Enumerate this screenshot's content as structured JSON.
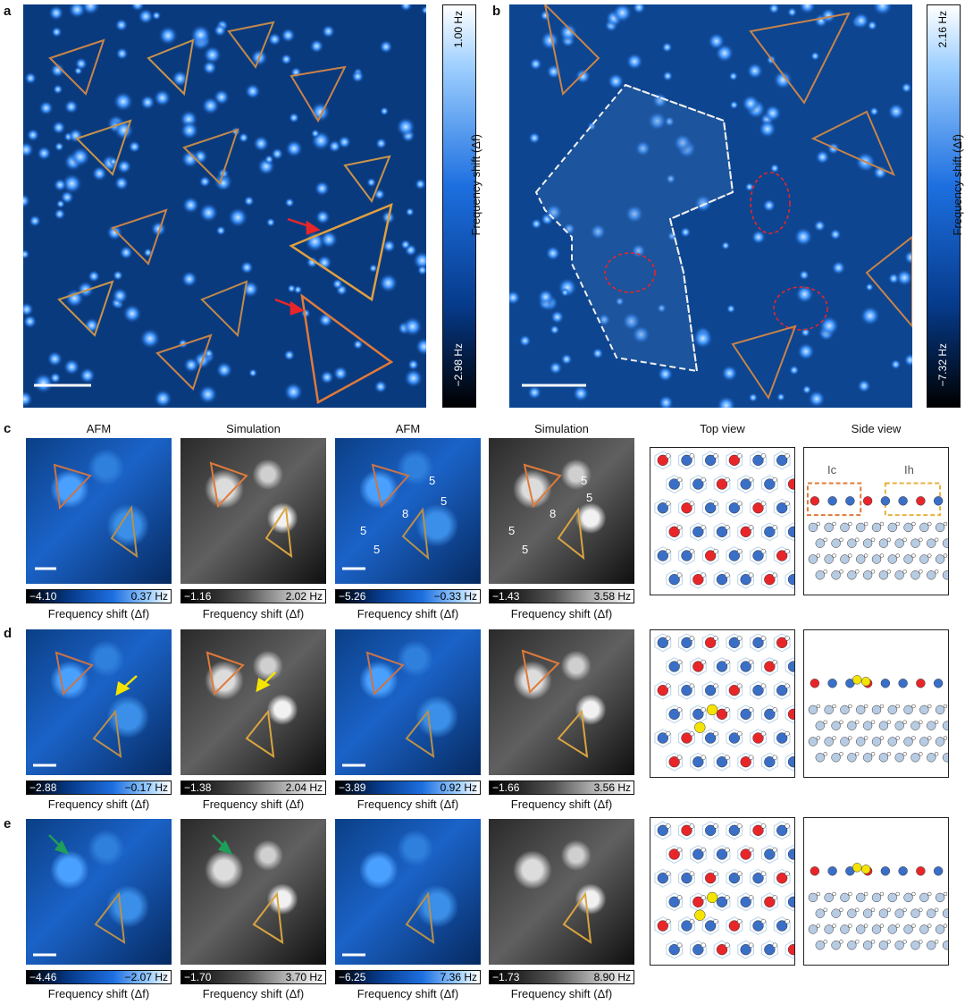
{
  "panels": {
    "a": {
      "label": "a",
      "cbar_max": "1.00 Hz",
      "cbar_min": "−2.98 Hz",
      "cbar_title": "Frequency shift (Δf)"
    },
    "b": {
      "label": "b",
      "cbar_max": "2.16 Hz",
      "cbar_min": "−7.32 Hz",
      "cbar_title": "Frequency shift (Δf)"
    },
    "c": {
      "label": "c"
    },
    "d": {
      "label": "d"
    },
    "e": {
      "label": "e"
    }
  },
  "columns": [
    "AFM",
    "Simulation",
    "AFM",
    "Simulation",
    "Top view",
    "Side view"
  ],
  "side_labels": {
    "ic": "Ic",
    "ih": "Ih"
  },
  "ring_labels": [
    "5",
    "5",
    "8",
    "5",
    "5"
  ],
  "caption": "Frequency shift (Δf)",
  "colorbars": {
    "c": [
      {
        "lo": "−4.10",
        "hi": "0.37 Hz"
      },
      {
        "lo": "−1.16",
        "hi": "2.02 Hz"
      },
      {
        "lo": "−5.26",
        "hi": "−0.33 Hz"
      },
      {
        "lo": "−1.43",
        "hi": "3.58 Hz"
      }
    ],
    "d": [
      {
        "lo": "−2.88",
        "hi": "−0.17 Hz"
      },
      {
        "lo": "−1.38",
        "hi": "2.04 Hz"
      },
      {
        "lo": "−3.89",
        "hi": "0.92 Hz"
      },
      {
        "lo": "−1.66",
        "hi": "3.56 Hz"
      }
    ],
    "e": [
      {
        "lo": "−4.46",
        "hi": "−2.07 Hz"
      },
      {
        "lo": "−1.70",
        "hi": "3.70 Hz"
      },
      {
        "lo": "−6.25",
        "hi": "7.36 Hz"
      },
      {
        "lo": "−1.73",
        "hi": "8.90 Hz"
      }
    ]
  },
  "colors": {
    "orange": "#e07a3a",
    "gold": "#d9a441",
    "red": "#e8262a",
    "green": "#1f9e5a",
    "blue": "#1a2fd0",
    "yellow": "#f5e400"
  }
}
